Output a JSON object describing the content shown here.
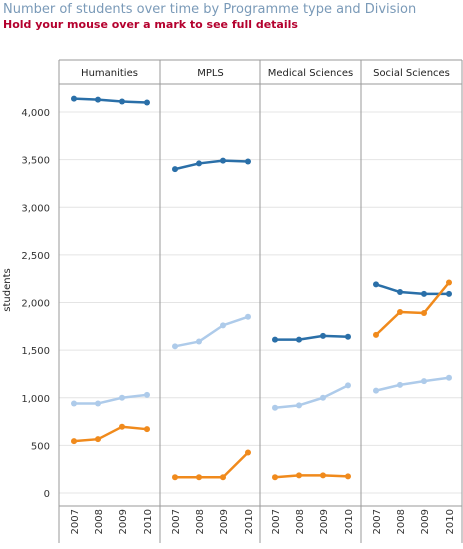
{
  "header": {
    "title": "Number of students over time by Programme type and Division",
    "subtitle": "Hold your mouse over a mark to see full details"
  },
  "colors": {
    "dark_blue": "#2a6fa8",
    "light_blue": "#aecbea",
    "orange": "#f08a1c",
    "frame": "#9a9a9a",
    "grid": "#e4e4e4"
  },
  "chart_data": {
    "type": "line",
    "ylabel": "students",
    "ylim": [
      0,
      4300
    ],
    "yticks": [
      0,
      500,
      1000,
      1500,
      2000,
      2500,
      3000,
      3500,
      4000
    ],
    "ytick_labels": [
      "0",
      "500",
      "1,000",
      "1,500",
      "2,000",
      "2,500",
      "3,000",
      "3,500",
      "4,000"
    ],
    "x": [
      "2007",
      "2008",
      "2009",
      "2010"
    ],
    "panels": [
      {
        "name": "Humanities",
        "series": [
          {
            "color": "#2a6fa8",
            "values": [
              4140,
              4130,
              4110,
              4100
            ]
          },
          {
            "color": "#aecbea",
            "values": [
              940,
              940,
              1000,
              1030
            ]
          },
          {
            "color": "#f08a1c",
            "values": [
              545,
              565,
              695,
              670
            ]
          }
        ]
      },
      {
        "name": "MPLS",
        "series": [
          {
            "color": "#2a6fa8",
            "values": [
              3400,
              3460,
              3490,
              3480
            ]
          },
          {
            "color": "#aecbea",
            "values": [
              1540,
              1590,
              1760,
              1850
            ]
          },
          {
            "color": "#f08a1c",
            "values": [
              165,
              165,
              165,
              425
            ]
          }
        ]
      },
      {
        "name": "Medical Sciences",
        "series": [
          {
            "color": "#2a6fa8",
            "values": [
              1610,
              1610,
              1650,
              1640
            ]
          },
          {
            "color": "#aecbea",
            "values": [
              895,
              920,
              1000,
              1130
            ]
          },
          {
            "color": "#f08a1c",
            "values": [
              165,
              185,
              185,
              175
            ]
          }
        ]
      },
      {
        "name": "Social Sciences",
        "series": [
          {
            "color": "#2a6fa8",
            "values": [
              2190,
              2110,
              2090,
              2090
            ]
          },
          {
            "color": "#aecbea",
            "values": [
              1075,
              1135,
              1175,
              1210
            ]
          },
          {
            "color": "#f08a1c",
            "values": [
              1660,
              1900,
              1890,
              2210
            ]
          }
        ]
      }
    ]
  }
}
